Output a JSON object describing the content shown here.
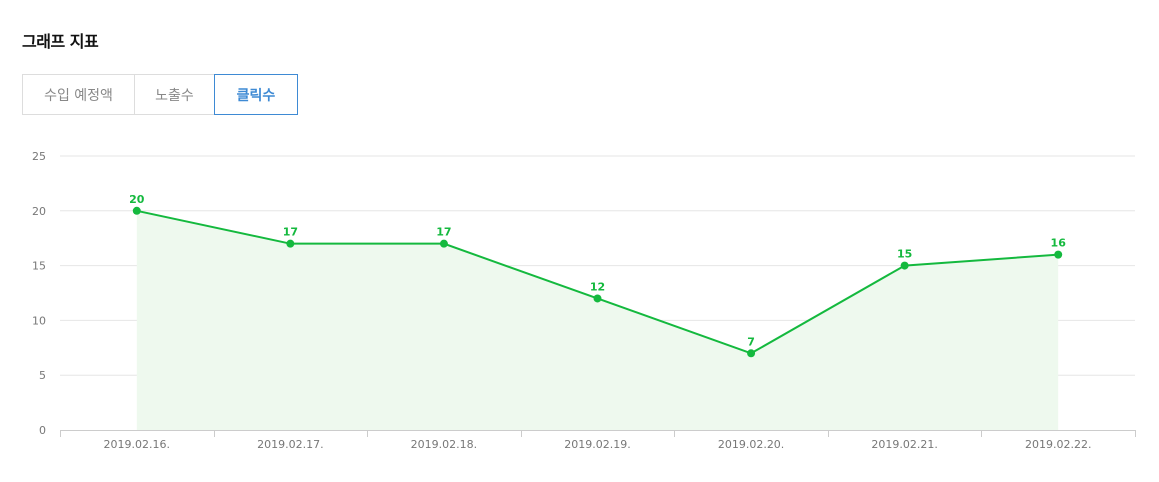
{
  "page": {
    "title": "그래프 지표"
  },
  "tabs": [
    {
      "label": "수입 예정액",
      "active": false
    },
    {
      "label": "노출수",
      "active": false
    },
    {
      "label": "클릭수",
      "active": true
    }
  ],
  "colors": {
    "line": "#14b93e",
    "area": "#eef9ee",
    "active_tab": "#3e8ad4",
    "grid": "#e6e6e6"
  },
  "chart_data": {
    "type": "area",
    "categories": [
      "2019.02.16.",
      "2019.02.17.",
      "2019.02.18.",
      "2019.02.19.",
      "2019.02.20.",
      "2019.02.21.",
      "2019.02.22."
    ],
    "series": [
      {
        "values": [
          20,
          17,
          17,
          12,
          7,
          15,
          16
        ]
      }
    ],
    "yticks": [
      0,
      5,
      10,
      15,
      20,
      25
    ],
    "ylim": [
      0,
      25
    ],
    "grid": true,
    "data_labels": true,
    "legend": "none"
  }
}
